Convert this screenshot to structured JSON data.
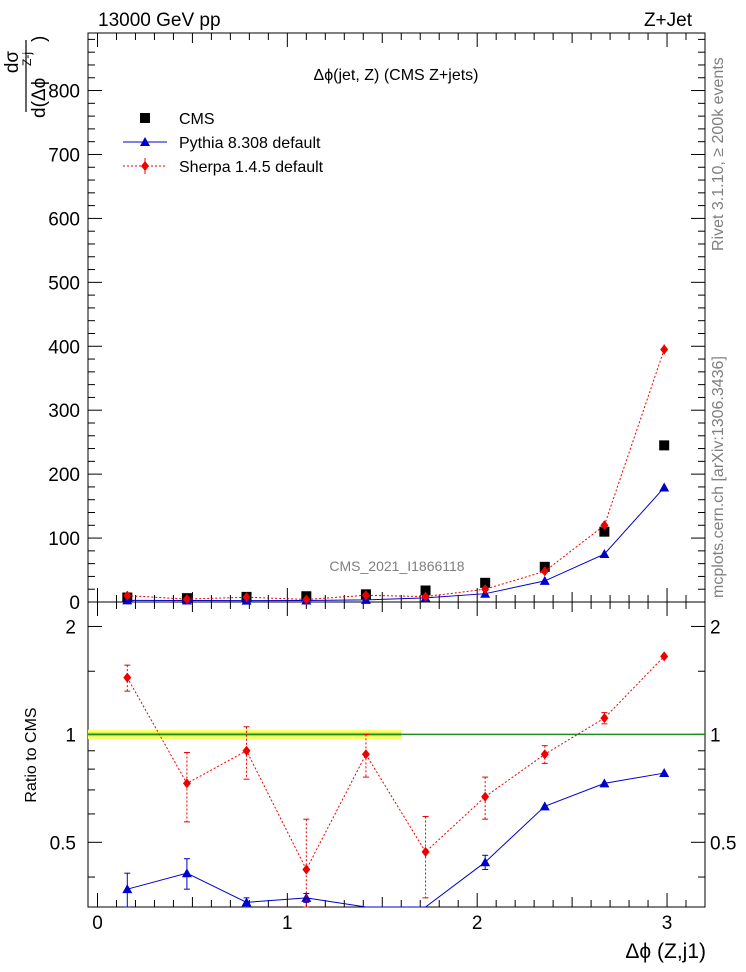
{
  "header": {
    "left": "13000 GeV pp",
    "right": "Z+Jet"
  },
  "side": {
    "rivet": "Rivet 3.1.10, ≥ 200k events",
    "mcplots": "mcplots.cern.ch [arXiv:1306.3436]"
  },
  "chart_data": [
    {
      "type": "scatter",
      "title": "Δϕ(jet, Z) (CMS Z+jets)",
      "watermark": "CMS_2021_I1866118",
      "ylabel_num": "dσ",
      "ylabel_den": "d(Δϕ",
      "ylabel_sup": "Z-j",
      "ylabel_close": ")",
      "ylim": [
        0,
        890
      ],
      "xlim": [
        -0.05,
        3.2
      ],
      "yticks": [
        0,
        100,
        200,
        300,
        400,
        500,
        600,
        700,
        800
      ],
      "legend": [
        "CMS",
        "Pythia 8.308 default",
        "Sherpa 1.4.5 default"
      ],
      "legend_position": "top-left",
      "x": [
        0.157,
        0.471,
        0.785,
        1.1,
        1.414,
        1.728,
        2.042,
        2.356,
        2.67,
        2.985
      ],
      "series": [
        {
          "name": "CMS",
          "color": "#000000",
          "marker": "square",
          "values": [
            7,
            6,
            8,
            9,
            12,
            18,
            30,
            55,
            110,
            245
          ]
        },
        {
          "name": "Pythia 8.308 default",
          "color": "#0000cc",
          "marker": "triangle",
          "values": [
            2.5,
            2.4,
            2.2,
            2.4,
            3.3,
            6.5,
            13,
            33,
            75,
            179
          ]
        },
        {
          "name": "Sherpa 1.4.5 default",
          "color": "#ee0000",
          "marker": "diamond",
          "values": [
            10,
            4.5,
            7.5,
            4,
            10.5,
            8.5,
            20,
            48,
            120,
            395
          ],
          "errors": [
            2,
            1.2,
            1.5,
            1,
            1.5,
            1.5,
            2,
            3,
            5,
            8
          ]
        }
      ]
    },
    {
      "type": "scatter",
      "ylabel": "Ratio to CMS",
      "xlabel": "Δϕ (Z,j1)",
      "ylim": [
        0.33,
        2.34
      ],
      "xlim": [
        -0.05,
        3.2
      ],
      "yticks": [
        0.5,
        1,
        2
      ],
      "xticks": [
        0,
        1,
        2,
        3
      ],
      "series": [
        {
          "name": "Pythia 8.308 default",
          "color": "#0000cc",
          "values": [
            0.37,
            0.41,
            0.34,
            0.35,
            0.28,
            0.29,
            0.44,
            0.63,
            0.73,
            0.78
          ],
          "errors": [
            0.04,
            0.04,
            0.01,
            0.01,
            0.01,
            0.01,
            0.02,
            0.01,
            0.01,
            0.01
          ]
        },
        {
          "name": "Sherpa 1.4.5 default",
          "color": "#ee0000",
          "values": [
            1.44,
            0.73,
            0.9,
            0.42,
            0.88,
            0.47,
            0.67,
            0.88,
            1.11,
            1.65
          ],
          "errors": [
            0.12,
            0.16,
            0.15,
            0.16,
            0.12,
            0.12,
            0.09,
            0.05,
            0.04,
            0.02
          ]
        }
      ]
    }
  ]
}
